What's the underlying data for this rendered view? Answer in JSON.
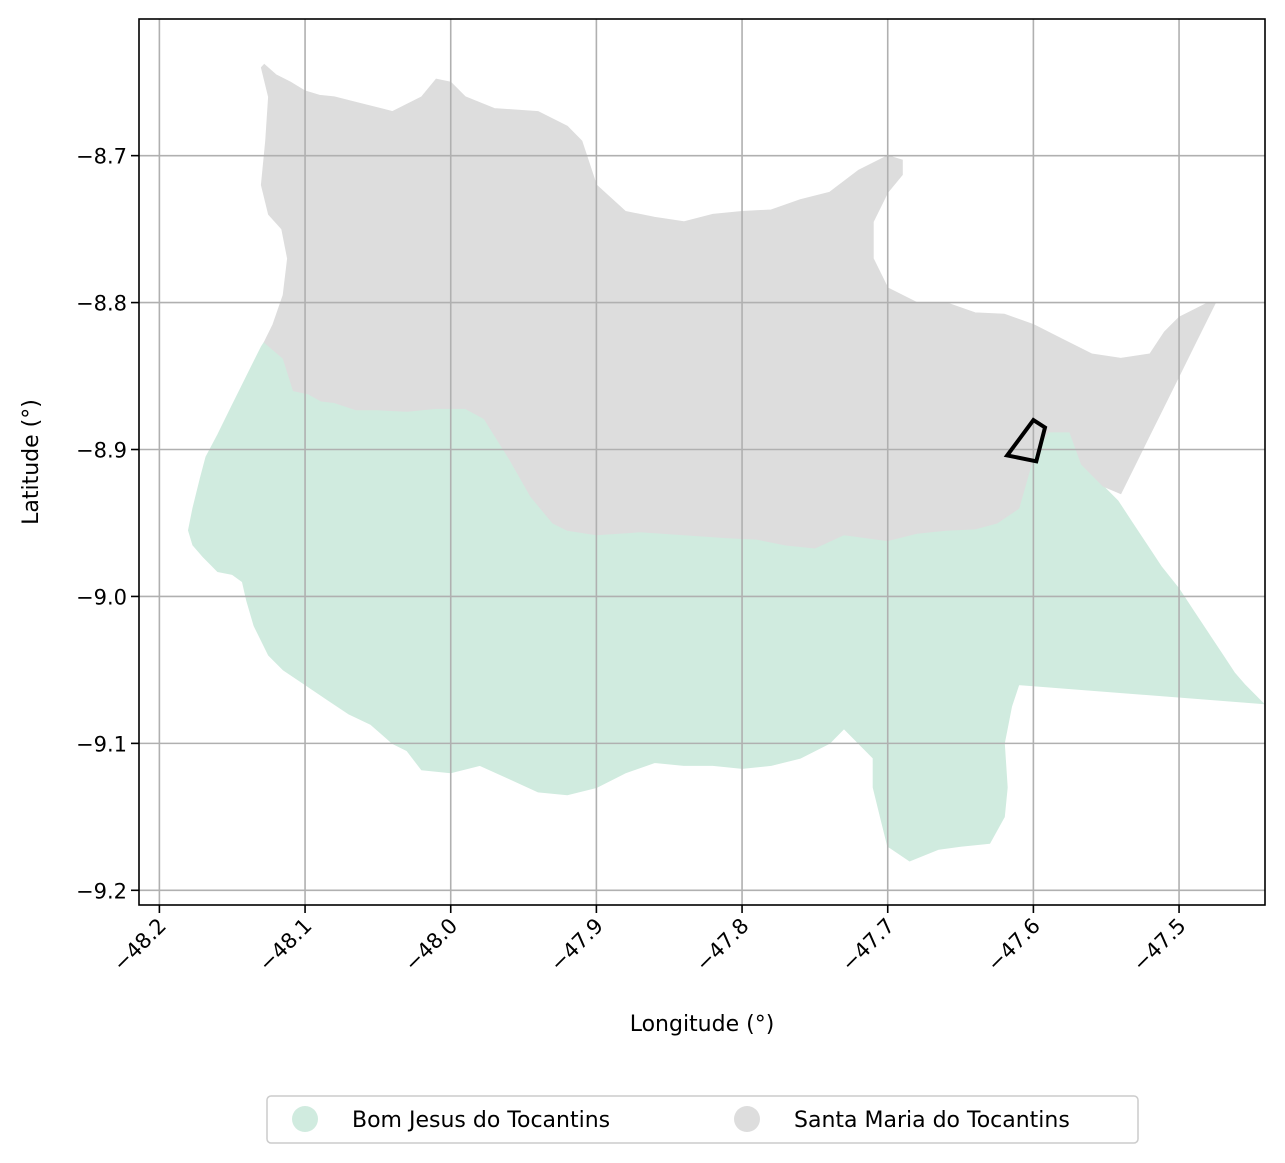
{
  "chart_data": {
    "type": "map",
    "xlabel": "Longitude (°)",
    "ylabel": "Latitude (°)",
    "xlim": [
      -48.214,
      -47.441
    ],
    "ylim": [
      -9.21,
      -8.607
    ],
    "grid": true,
    "x_ticks": [
      {
        "value": -48.2,
        "label": "−48.2"
      },
      {
        "value": -48.1,
        "label": "−48.1"
      },
      {
        "value": -48.0,
        "label": "−48.0"
      },
      {
        "value": -47.9,
        "label": "−47.9"
      },
      {
        "value": -47.8,
        "label": "−47.8"
      },
      {
        "value": -47.7,
        "label": "−47.7"
      },
      {
        "value": -47.6,
        "label": "−47.6"
      },
      {
        "value": -47.5,
        "label": "−47.5"
      }
    ],
    "y_ticks": [
      {
        "value": -8.7,
        "label": "−8.7"
      },
      {
        "value": -8.8,
        "label": "−8.8"
      },
      {
        "value": -8.9,
        "label": "−8.9"
      },
      {
        "value": -9.0,
        "label": "−9.0"
      },
      {
        "value": -9.1,
        "label": "−9.1"
      },
      {
        "value": -9.2,
        "label": "−9.2"
      }
    ],
    "legend_position": "bottom-center",
    "regions": [
      {
        "name": "Bom Jesus do Tocantins",
        "color": "#d0ebdf",
        "polygon": [
          [
            -48.128,
            -8.827
          ],
          [
            -48.115,
            -8.838
          ],
          [
            -48.108,
            -8.86
          ],
          [
            -48.098,
            -8.862
          ],
          [
            -48.089,
            -8.867
          ],
          [
            -48.08,
            -8.868
          ],
          [
            -48.065,
            -8.873
          ],
          [
            -48.05,
            -8.873
          ],
          [
            -48.03,
            -8.874
          ],
          [
            -48.01,
            -8.872
          ],
          [
            -47.99,
            -8.872
          ],
          [
            -47.977,
            -8.879
          ],
          [
            -47.96,
            -8.906
          ],
          [
            -47.945,
            -8.932
          ],
          [
            -47.93,
            -8.95
          ],
          [
            -47.92,
            -8.955
          ],
          [
            -47.9,
            -8.958
          ],
          [
            -47.87,
            -8.956
          ],
          [
            -47.84,
            -8.958
          ],
          [
            -47.81,
            -8.96
          ],
          [
            -47.79,
            -8.961
          ],
          [
            -47.77,
            -8.965
          ],
          [
            -47.75,
            -8.967
          ],
          [
            -47.73,
            -8.958
          ],
          [
            -47.7,
            -8.962
          ],
          [
            -47.68,
            -8.957
          ],
          [
            -47.66,
            -8.955
          ],
          [
            -47.64,
            -8.954
          ],
          [
            -47.625,
            -8.95
          ],
          [
            -47.61,
            -8.94
          ],
          [
            -47.6,
            -8.905
          ],
          [
            -47.59,
            -8.888
          ],
          [
            -47.575,
            -8.888
          ],
          [
            -47.567,
            -8.91
          ],
          [
            -47.552,
            -8.925
          ],
          [
            -47.542,
            -8.935
          ],
          [
            -47.532,
            -8.95
          ],
          [
            -47.522,
            -8.965
          ],
          [
            -47.512,
            -8.98
          ],
          [
            -47.5,
            -8.995
          ],
          [
            -47.49,
            -9.01
          ],
          [
            -47.48,
            -9.025
          ],
          [
            -47.47,
            -9.04
          ],
          [
            -47.462,
            -9.052
          ],
          [
            -47.455,
            -9.06
          ],
          [
            -47.442,
            -9.073
          ],
          [
            -47.61,
            -9.06
          ],
          [
            -47.615,
            -9.075
          ],
          [
            -47.62,
            -9.1
          ],
          [
            -47.618,
            -9.13
          ],
          [
            -47.62,
            -9.15
          ],
          [
            -47.63,
            -9.168
          ],
          [
            -47.65,
            -9.17
          ],
          [
            -47.665,
            -9.172
          ],
          [
            -47.685,
            -9.18
          ],
          [
            -47.7,
            -9.17
          ],
          [
            -47.705,
            -9.15
          ],
          [
            -47.71,
            -9.13
          ],
          [
            -47.71,
            -9.11
          ],
          [
            -47.72,
            -9.1
          ],
          [
            -47.73,
            -9.09
          ],
          [
            -47.74,
            -9.1
          ],
          [
            -47.76,
            -9.11
          ],
          [
            -47.78,
            -9.115
          ],
          [
            -47.8,
            -9.117
          ],
          [
            -47.82,
            -9.115
          ],
          [
            -47.84,
            -9.115
          ],
          [
            -47.86,
            -9.113
          ],
          [
            -47.88,
            -9.12
          ],
          [
            -47.9,
            -9.13
          ],
          [
            -47.92,
            -9.135
          ],
          [
            -47.94,
            -9.133
          ],
          [
            -47.96,
            -9.124
          ],
          [
            -47.98,
            -9.115
          ],
          [
            -48.0,
            -9.12
          ],
          [
            -48.02,
            -9.118
          ],
          [
            -48.03,
            -9.105
          ],
          [
            -48.04,
            -9.1
          ],
          [
            -48.055,
            -9.087
          ],
          [
            -48.07,
            -9.08
          ],
          [
            -48.085,
            -9.07
          ],
          [
            -48.1,
            -9.06
          ],
          [
            -48.115,
            -9.05
          ],
          [
            -48.125,
            -9.04
          ],
          [
            -48.135,
            -9.02
          ],
          [
            -48.14,
            -9.003
          ],
          [
            -48.143,
            -8.99
          ],
          [
            -48.15,
            -8.985
          ],
          [
            -48.16,
            -8.983
          ],
          [
            -48.17,
            -8.973
          ],
          [
            -48.177,
            -8.965
          ],
          [
            -48.18,
            -8.955
          ],
          [
            -48.177,
            -8.94
          ],
          [
            -48.172,
            -8.92
          ],
          [
            -48.168,
            -8.905
          ],
          [
            -48.16,
            -8.89
          ],
          [
            -48.15,
            -8.87
          ],
          [
            -48.14,
            -8.85
          ],
          [
            -48.13,
            -8.83
          ]
        ]
      },
      {
        "name": "Santa Maria do Tocantins",
        "color": "#dddddd",
        "polygon": [
          [
            -48.128,
            -8.638
          ],
          [
            -48.12,
            -8.645
          ],
          [
            -48.11,
            -8.65
          ],
          [
            -48.1,
            -8.656
          ],
          [
            -48.09,
            -8.659
          ],
          [
            -48.08,
            -8.66
          ],
          [
            -48.06,
            -8.665
          ],
          [
            -48.04,
            -8.67
          ],
          [
            -48.02,
            -8.66
          ],
          [
            -48.01,
            -8.648
          ],
          [
            -48.0,
            -8.65
          ],
          [
            -47.99,
            -8.66
          ],
          [
            -47.97,
            -8.668
          ],
          [
            -47.94,
            -8.67
          ],
          [
            -47.92,
            -8.68
          ],
          [
            -47.91,
            -8.69
          ],
          [
            -47.9,
            -8.72
          ],
          [
            -47.88,
            -8.738
          ],
          [
            -47.86,
            -8.742
          ],
          [
            -47.84,
            -8.745
          ],
          [
            -47.82,
            -8.74
          ],
          [
            -47.8,
            -8.738
          ],
          [
            -47.78,
            -8.737
          ],
          [
            -47.76,
            -8.73
          ],
          [
            -47.74,
            -8.725
          ],
          [
            -47.72,
            -8.71
          ],
          [
            -47.7,
            -8.7
          ],
          [
            -47.69,
            -8.703
          ],
          [
            -47.69,
            -8.713
          ],
          [
            -47.7,
            -8.725
          ],
          [
            -47.71,
            -8.745
          ],
          [
            -47.71,
            -8.77
          ],
          [
            -47.7,
            -8.79
          ],
          [
            -47.68,
            -8.8
          ],
          [
            -47.66,
            -8.8
          ],
          [
            -47.64,
            -8.807
          ],
          [
            -47.62,
            -8.808
          ],
          [
            -47.6,
            -8.815
          ],
          [
            -47.58,
            -8.825
          ],
          [
            -47.56,
            -8.835
          ],
          [
            -47.54,
            -8.838
          ],
          [
            -47.52,
            -8.835
          ],
          [
            -47.51,
            -8.82
          ],
          [
            -47.5,
            -8.81
          ],
          [
            -47.48,
            -8.8
          ],
          [
            -47.475,
            -8.8
          ],
          [
            -47.48,
            -8.81
          ],
          [
            -47.49,
            -8.83
          ],
          [
            -47.5,
            -8.85
          ],
          [
            -47.51,
            -8.87
          ],
          [
            -47.52,
            -8.89
          ],
          [
            -47.53,
            -8.91
          ],
          [
            -47.54,
            -8.93
          ],
          [
            -47.552,
            -8.925
          ],
          [
            -47.567,
            -8.91
          ],
          [
            -47.575,
            -8.888
          ],
          [
            -47.59,
            -8.888
          ],
          [
            -47.6,
            -8.905
          ],
          [
            -47.61,
            -8.94
          ],
          [
            -47.625,
            -8.95
          ],
          [
            -47.64,
            -8.954
          ],
          [
            -47.66,
            -8.955
          ],
          [
            -47.68,
            -8.957
          ],
          [
            -47.7,
            -8.962
          ],
          [
            -47.73,
            -8.958
          ],
          [
            -47.75,
            -8.967
          ],
          [
            -47.77,
            -8.965
          ],
          [
            -47.79,
            -8.961
          ],
          [
            -47.81,
            -8.96
          ],
          [
            -47.84,
            -8.958
          ],
          [
            -47.87,
            -8.956
          ],
          [
            -47.9,
            -8.958
          ],
          [
            -47.92,
            -8.955
          ],
          [
            -47.93,
            -8.95
          ],
          [
            -47.945,
            -8.932
          ],
          [
            -47.96,
            -8.906
          ],
          [
            -47.977,
            -8.879
          ],
          [
            -47.99,
            -8.872
          ],
          [
            -48.01,
            -8.872
          ],
          [
            -48.03,
            -8.874
          ],
          [
            -48.05,
            -8.873
          ],
          [
            -48.065,
            -8.873
          ],
          [
            -48.08,
            -8.868
          ],
          [
            -48.089,
            -8.867
          ],
          [
            -48.098,
            -8.862
          ],
          [
            -48.108,
            -8.86
          ],
          [
            -48.115,
            -8.838
          ],
          [
            -48.128,
            -8.827
          ],
          [
            -48.122,
            -8.815
          ],
          [
            -48.115,
            -8.795
          ],
          [
            -48.112,
            -8.77
          ],
          [
            -48.116,
            -8.75
          ],
          [
            -48.125,
            -8.74
          ],
          [
            -48.13,
            -8.72
          ],
          [
            -48.127,
            -8.69
          ],
          [
            -48.125,
            -8.66
          ],
          [
            -48.13,
            -8.64
          ]
        ]
      }
    ],
    "marker": {
      "polygon": [
        [
          -47.6,
          -8.88
        ],
        [
          -47.592,
          -8.885
        ],
        [
          -47.598,
          -8.908
        ],
        [
          -47.618,
          -8.904
        ]
      ]
    }
  }
}
